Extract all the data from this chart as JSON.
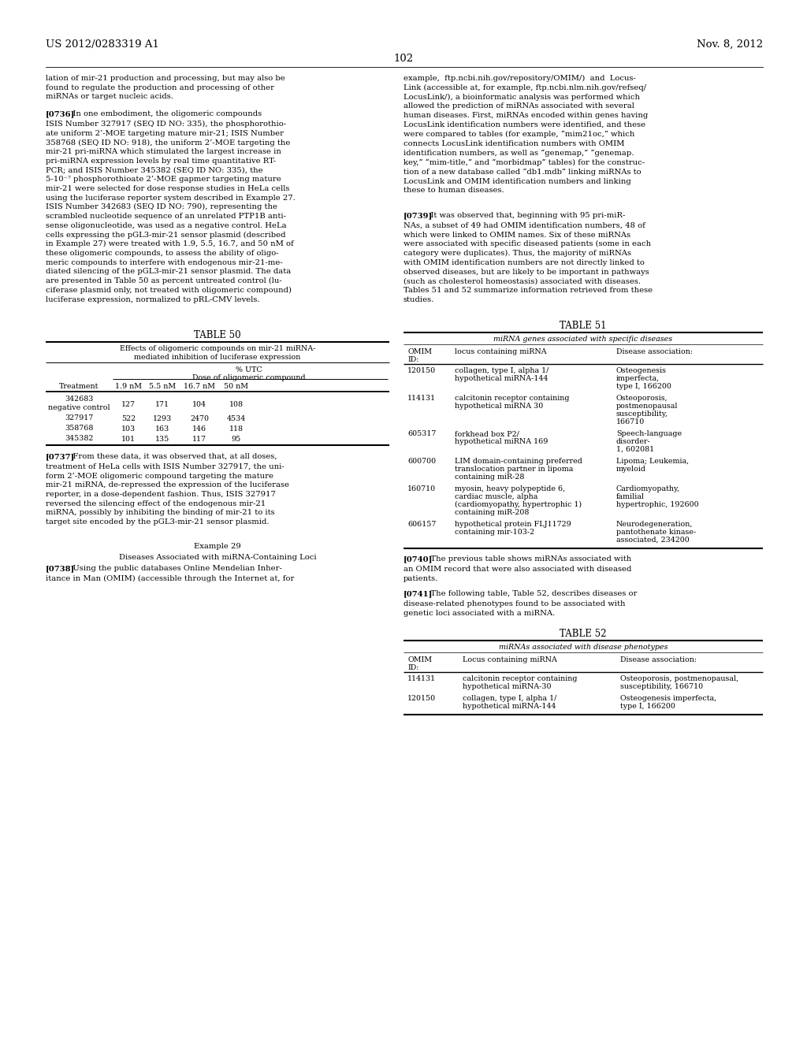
{
  "bg_color": "#ffffff",
  "header_left": "US 2012/0283319 A1",
  "header_right": "Nov. 8, 2012",
  "page_number": "102",
  "left_column": {
    "intro_text": "lation of mir-21 production and processing, but may also be\nfound to regulate the production and processing of other\nmiRNAs or target nucleic acids.",
    "para_0736": "[0736]   In one embodiment, the oligomeric compounds\nISIS Number 327917 (SEQ ID NO: 335), the phosphorothio-\nate uniform 2’-MOE targeting mature mir-21; ISIS Number\n358768 (SEQ ID NO: 918), the uniform 2’-MOE targeting the\nmir-21 pri-miRNA which stimulated the largest increase in\npri-miRNA expression levels by real time quantitative RT-\nPCR; and ISIS Number 345382 (SEQ ID NO: 335), the\n5-10⁻⁷ phosphorothioate 2’-MOE gapmer targeting mature\nmir-21 were selected for dose response studies in HeLa cells\nusing the luciferase reporter system described in Example 27.\nISIS Number 342683 (SEQ ID NO: 790), representing the\nscrambled nucleotide sequence of an unrelated PTP1B anti-\nsense oligonucleotide, was used as a negative control. HeLa\ncells expressing the pGL3-mir-21 sensor plasmid (described\nin Example 27) were treated with 1.9, 5.5, 16.7, and 50 nM of\nthese oligomeric compounds, to assess the ability of oligo-\nmeric compounds to interfere with endogenous mir-21-me-\ndiated silencing of the pGL3-mir-21 sensor plasmid. The data\nare presented in Table 50 as percent untreated control (lu-\nciferase plasmid only, not treated with oligomeric compound)\nluciferase expression, normalized to pRL-CMV levels.",
    "table50_title": "TABLE 50",
    "table50_subtitle1": "Effects of oligomeric compounds on mir-21 miRNA-",
    "table50_subtitle2": "mediated inhibition of luciferase expression",
    "table50_header_pct": "% UTC",
    "table50_header_dose": "Dose of oligomeric compound",
    "table50_col_headers": [
      "Treatment",
      "1.9 nM",
      "5.5 nM",
      "16.7 nM",
      "50 nM"
    ],
    "table50_rows": [
      [
        "342683\nnegative control",
        "127",
        "171",
        "104",
        "108"
      ],
      [
        "327917",
        "522",
        "1293",
        "2470",
        "4534"
      ],
      [
        "358768",
        "103",
        "163",
        "146",
        "118"
      ],
      [
        "345382",
        "101",
        "135",
        "117",
        "95"
      ]
    ],
    "para_0737": "[0737]   From these data, it was observed that, at all doses,\ntreatment of HeLa cells with ISIS Number 327917, the uni-\nform 2’-MOE oligomeric compound targeting the mature\nmir-21 miRNA, de-repressed the expression of the luciferase\nreporter, in a dose-dependent fashion. Thus, ISIS 327917\nreversed the silencing effect of the endogenous mir-21\nmiRNA, possibly by inhibiting the binding of mir-21 to its\ntarget site encoded by the pGL3-mir-21 sensor plasmid.",
    "example29_title": "Example 29",
    "example29_subtitle": "Diseases Associated with miRNA-Containing Loci",
    "para_0738": "[0738]   Using the public databases Online Mendelian Inher-\nitance in Man (OMIM) (accessible through the Internet at, for"
  },
  "right_column": {
    "intro_text": "example,  ftp.ncbi.nih.gov/repository/OMIM/)  and  Locus-\nLink (accessible at, for example, ftp.ncbi.nlm.nih.gov/refseq/\nLocusLink/), a bioinformatic analysis was performed which\nallowed the prediction of miRNAs associated with several\nhuman diseases. First, miRNAs encoded within genes having\nLocusLink identification numbers were identified, and these\nwere compared to tables (for example, “mim21oc,” which\nconnects LocusLink identification numbers with OMIM\nidentification numbers, as well as “genemap,” “genemap.\nkey,” “mim-title,” and “morbidmap” tables) for the construc-\ntion of a new database called “db1.mdb” linking miRNAs to\nLocusLink and OMIM identification numbers and linking\nthese to human diseases.",
    "para_0739": "[0739]   It was observed that, beginning with 95 pri-miR-\nNAs, a subset of 49 had OMIM identification numbers, 48 of\nwhich were linked to OMIM names. Six of these miRNAs\nwere associated with specific diseased patients (some in each\ncategory were duplicates). Thus, the majority of miRNAs\nwith OMIM identification numbers are not directly linked to\nobserved diseases, but are likely to be important in pathways\n(such as cholesterol homeostasis) associated with diseases.\nTables 51 and 52 summarize information retrieved from these\nstudies.",
    "table51_title": "TABLE 51",
    "table51_subtitle": "miRNA genes associated with specific diseases",
    "table51_col_headers": [
      "OMIM\nID:",
      "locus containing miRNA",
      "Disease association:"
    ],
    "table51_rows": [
      [
        "120150",
        "collagen, type I, alpha 1/\nhypothetical miRNA-144",
        "Osteogenesis\nimperfecta,\ntype I, 166200"
      ],
      [
        "114131",
        "calcitonin receptor containing\nhypothetical miRNA 30",
        "Osteoporosis,\npostmenopausal\nsusceptibility,\n166710"
      ],
      [
        "605317",
        "forkhead box P2/\nhypothetical miRNA 169",
        "Speech-language\ndisorder-\n1, 602081"
      ],
      [
        "600700",
        "LIM domain-containing preferred\ntranslocation partner in lipoma\ncontaining miR-28",
        "Lipoma; Leukemia,\nmyeloid"
      ],
      [
        "160710",
        "myosin, heavy polypeptide 6,\ncardiac muscle, alpha\n(cardiomyopathy, hypertrophic 1)\ncontaining miR-208",
        "Cardiomyopathy,\nfamilial\nhypertrophic, 192600"
      ],
      [
        "606157",
        "hypothetical protein FLJ11729\ncontaining mir-103-2",
        "Neurodegeneration,\npantothenate kinase-\nassociated, 234200"
      ]
    ],
    "para_0740": "[0740]   The previous table shows miRNAs associated with\nan OMIM record that were also associated with diseased\npatients.",
    "para_0741": "[0741]   The following table, Table 52, describes diseases or\ndisease-related phenotypes found to be associated with\ngenetic loci associated with a miRNA.",
    "table52_title": "TABLE 52",
    "table52_subtitle": "miRNAs associated with disease phenotypes",
    "table52_col_headers": [
      "OMIM\nID:",
      "Locus containing miRNA",
      "Disease association:"
    ],
    "table52_rows": [
      [
        "114131",
        "calcitonin receptor containing\nhypothetical miRNA-30",
        "Osteoporosis, postmenopausal,\nsusceptibility, 166710"
      ],
      [
        "120150",
        "collagen, type I, alpha 1/\nhypothetical miRNA-144",
        "Osteogenesis imperfecta,\ntype I, 166200"
      ]
    ]
  }
}
